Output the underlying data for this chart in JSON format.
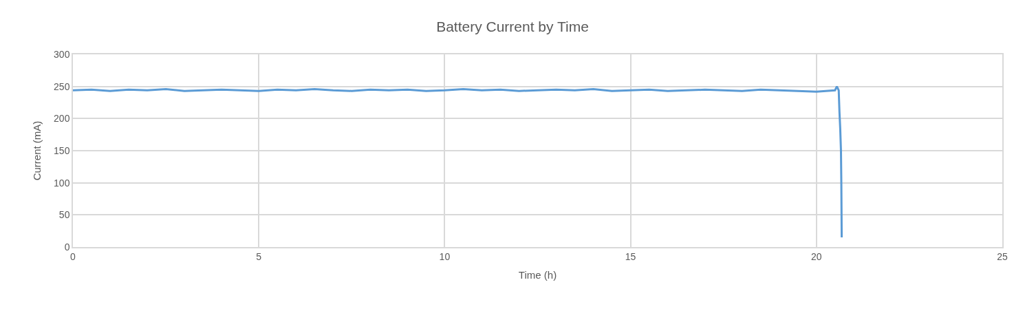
{
  "chart_data": {
    "type": "line",
    "title": "Battery Current by Time",
    "xlabel": "Time (h)",
    "ylabel": "Current (mA)",
    "x": [
      0,
      0.5,
      1,
      1.5,
      2,
      2.5,
      3,
      3.5,
      4,
      4.5,
      5,
      5.5,
      6,
      6.5,
      7,
      7.5,
      8,
      8.5,
      9,
      9.5,
      10,
      10.5,
      11,
      11.5,
      12,
      12.5,
      13,
      13.5,
      14,
      14.5,
      15,
      15.5,
      16,
      16.5,
      17,
      17.5,
      18,
      18.5,
      19,
      19.5,
      20,
      20.5,
      20.55,
      20.6,
      20.62,
      20.64,
      20.66,
      20.67,
      20.68
    ],
    "series": [
      {
        "color": "#5b9bd5",
        "values": [
          244,
          245,
          243,
          245,
          244,
          246,
          243,
          244,
          245,
          244,
          243,
          245,
          244,
          246,
          244,
          243,
          245,
          244,
          245,
          243,
          244,
          246,
          244,
          245,
          243,
          244,
          245,
          244,
          246,
          243,
          244,
          245,
          243,
          244,
          245,
          244,
          243,
          245,
          244,
          243,
          242,
          244,
          250,
          244,
          210,
          185,
          150,
          100,
          15
        ]
      }
    ],
    "xlim": [
      0,
      25
    ],
    "xticks": [
      0,
      5,
      10,
      15,
      20,
      25
    ],
    "ylim": [
      0,
      300
    ],
    "yticks": [
      0,
      50,
      100,
      150,
      200,
      250,
      300
    ],
    "grid": true,
    "marker": "none",
    "line_style": "solid"
  }
}
